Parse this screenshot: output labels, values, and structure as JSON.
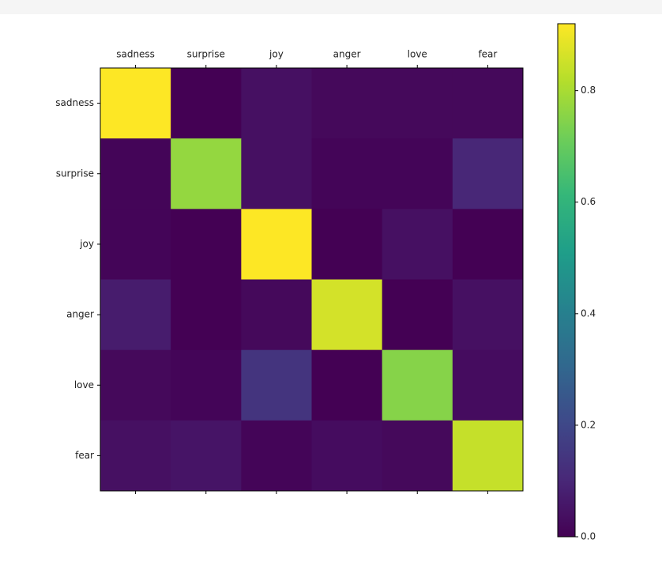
{
  "chart_data": {
    "type": "heatmap",
    "x_categories": [
      "sadness",
      "surprise",
      "joy",
      "anger",
      "love",
      "fear"
    ],
    "y_categories": [
      "sadness",
      "surprise",
      "joy",
      "anger",
      "love",
      "fear"
    ],
    "values": [
      [
        0.92,
        0.0,
        0.04,
        0.02,
        0.02,
        0.02
      ],
      [
        0.01,
        0.77,
        0.04,
        0.01,
        0.01,
        0.1
      ],
      [
        0.01,
        0.0,
        0.92,
        0.0,
        0.04,
        0.0
      ],
      [
        0.07,
        0.0,
        0.02,
        0.86,
        0.0,
        0.04
      ],
      [
        0.02,
        0.01,
        0.14,
        0.0,
        0.75,
        0.03
      ],
      [
        0.04,
        0.05,
        0.01,
        0.03,
        0.02,
        0.84
      ]
    ],
    "colormap": "viridis",
    "zlim": [
      0,
      0.92
    ],
    "zticks": [
      {
        "value": 0,
        "label": "0.0"
      },
      0.2,
      0.4,
      0.6,
      0.8
    ]
  }
}
